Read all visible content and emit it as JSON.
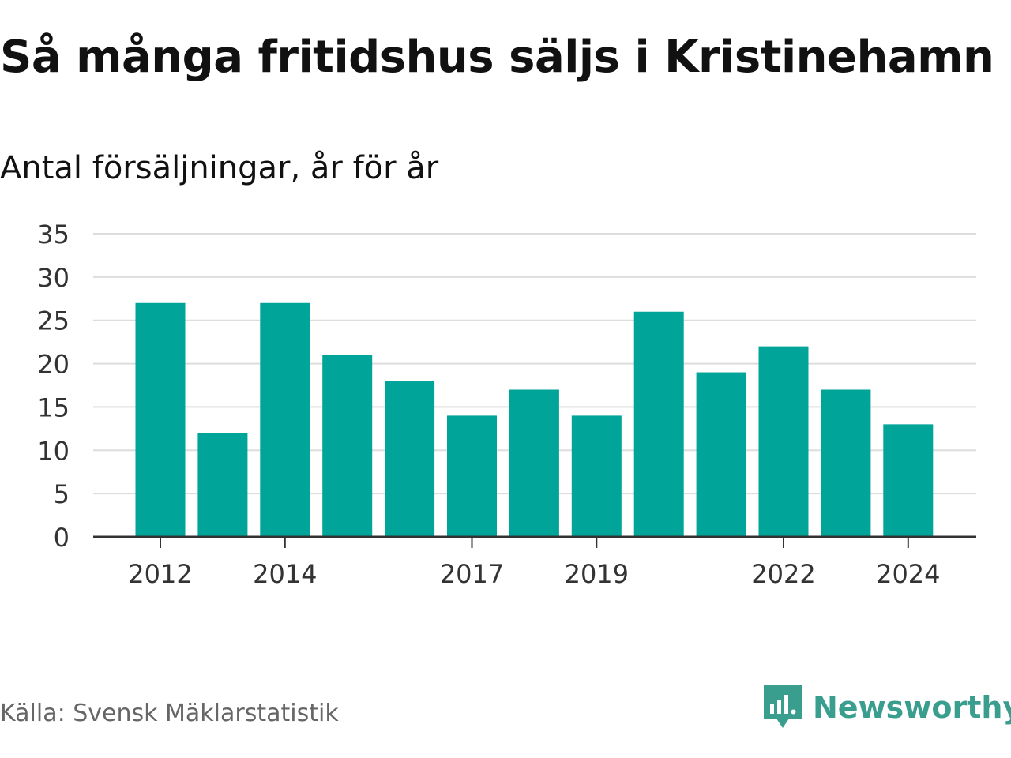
{
  "title": "Så många fritidshus säljs i Kristinehamn",
  "subtitle": "Antal försäljningar, år för år",
  "source": "Källa: Svensk Mäklarstatistik",
  "brand": {
    "name": "Newsworthy",
    "icon": "newsworthy-logo-icon",
    "color": "#3a9e8f"
  },
  "colors": {
    "bar": "#00a499",
    "grid": "#dddddd",
    "axis": "#333333",
    "text": "#333333"
  },
  "chart_data": {
    "type": "bar",
    "categories": [
      "2012",
      "2013",
      "2014",
      "2015",
      "2016",
      "2017",
      "2018",
      "2019",
      "2020",
      "2021",
      "2022",
      "2023",
      "2024"
    ],
    "values": [
      27,
      12,
      27,
      21,
      18,
      14,
      17,
      14,
      26,
      19,
      22,
      17,
      13
    ],
    "xtick_labels": [
      "2012",
      "2014",
      "2017",
      "2019",
      "2022",
      "2024"
    ],
    "yticks": [
      0,
      5,
      10,
      15,
      20,
      25,
      30,
      35
    ],
    "ylim": [
      0,
      35
    ],
    "grid": true,
    "legend": "none"
  }
}
